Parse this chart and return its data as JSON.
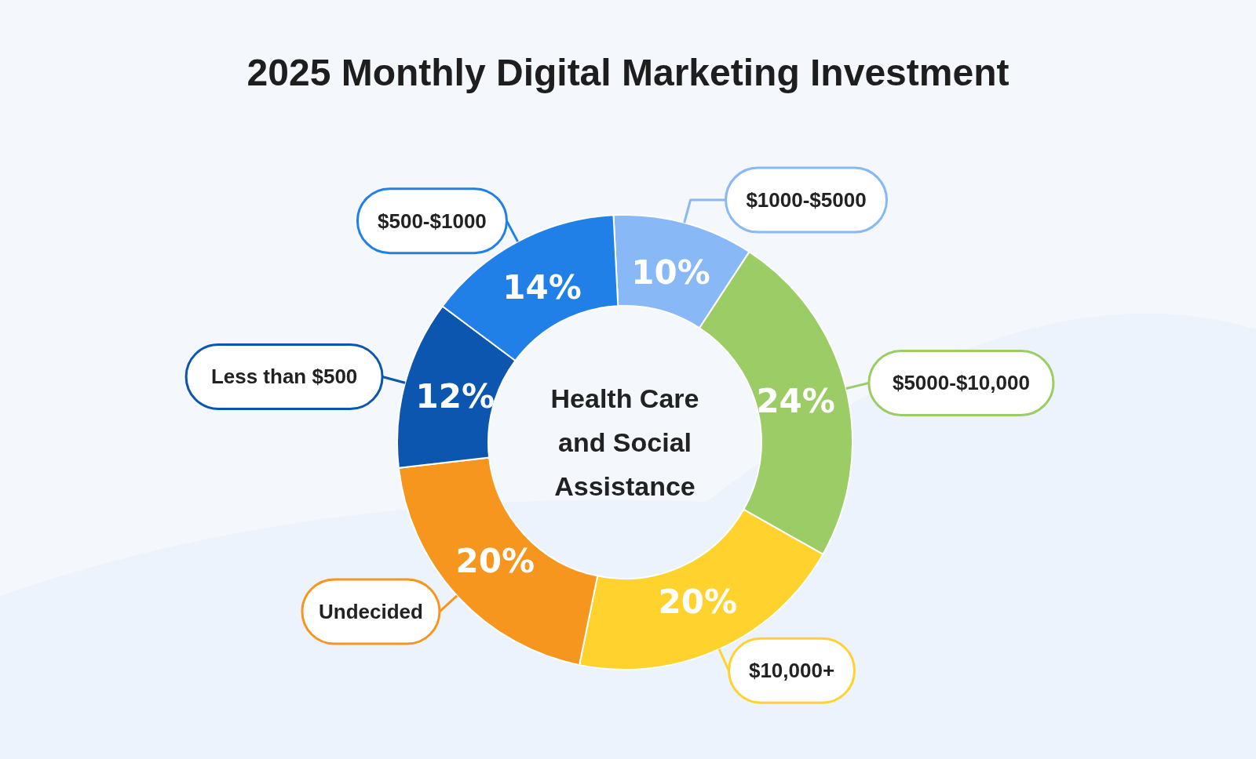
{
  "chart_data": {
    "type": "donut",
    "title": "2025 Monthly Digital Marketing Investment",
    "annotations": [
      "Health Care and Social Assistance"
    ],
    "categories": [
      "$1000-$5000",
      "$5000-$10,000",
      "$10,000+",
      "Undecided",
      "Less than $500",
      "$500-$1000"
    ],
    "values": [
      10,
      24,
      20,
      20,
      12,
      14
    ],
    "value_labels": [
      "10%",
      "24%",
      "20%",
      "20%",
      "12%",
      "14%"
    ],
    "colors": [
      "#88b8f5",
      "#9ccc65",
      "#ffd22e",
      "#f7961e",
      "#0d56b0",
      "#2180e8"
    ]
  }
}
